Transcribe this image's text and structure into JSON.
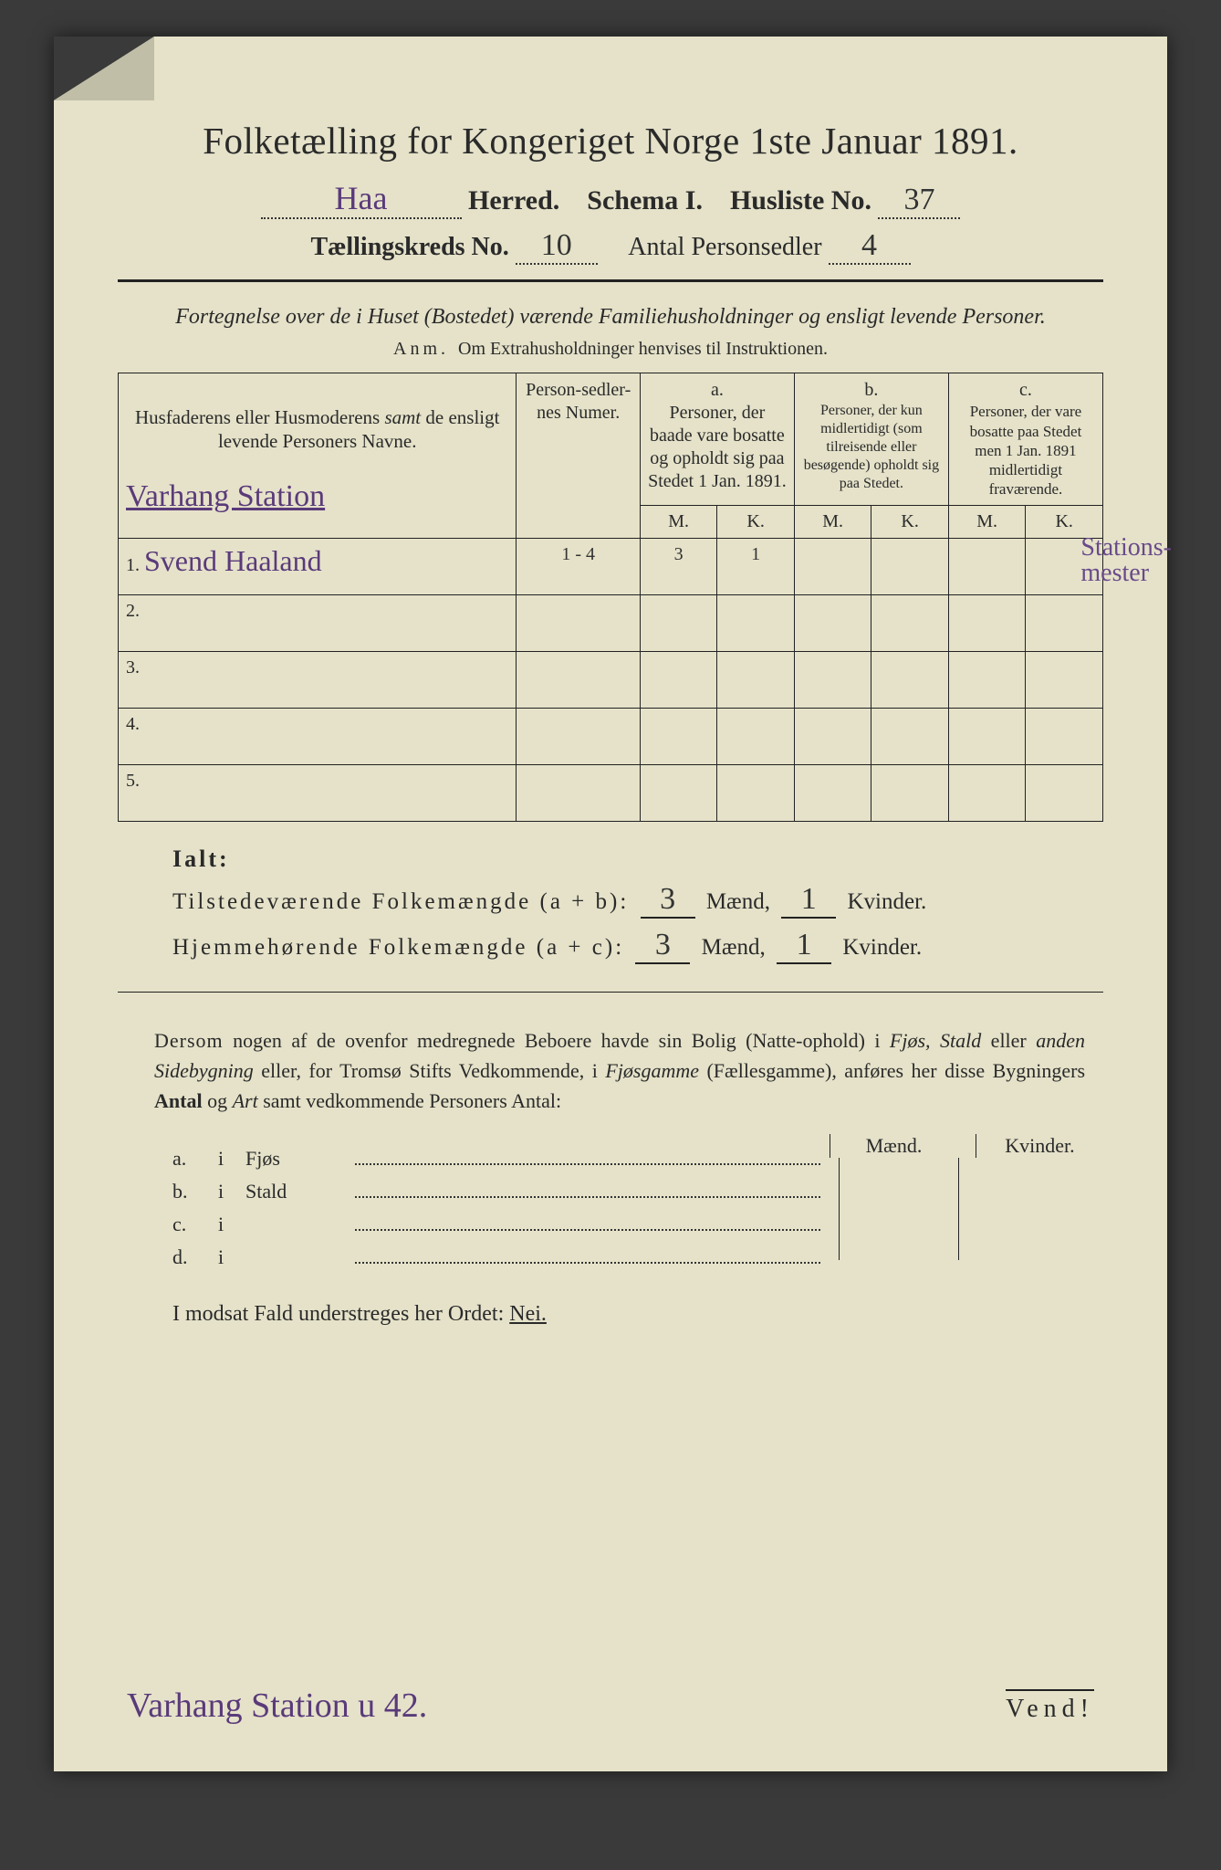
{
  "title": "Folketælling for Kongeriget Norge 1ste Januar 1891.",
  "header": {
    "herred_value": "Haa",
    "herred_label": "Herred.",
    "schema_label": "Schema I.",
    "husliste_label": "Husliste No.",
    "husliste_value": "37",
    "kreds_label": "Tællingskreds No.",
    "kreds_value": "10",
    "antal_label": "Antal Personsedler",
    "antal_value": "4"
  },
  "intro": {
    "line": "Fortegnelse over de i Huset (Bostedet) værende Familiehusholdninger og ensligt levende Personer.",
    "anm_label": "Anm.",
    "anm_text": "Om Extrahusholdninger henvises til Instruktionen."
  },
  "table": {
    "col_name": "Husfaderens eller Husmoderens samt de ensligt levende Personers Navne.",
    "col_num": "Person-sedler-nes Numer.",
    "col_a_tag": "a.",
    "col_a": "Personer, der baade vare bosatte og opholdt sig paa Stedet 1 Jan. 1891.",
    "col_b_tag": "b.",
    "col_b": "Personer, der kun midlertidigt (som tilreisende eller besøgende) opholdt sig paa Stedet.",
    "col_c_tag": "c.",
    "col_c": "Personer, der vare bosatte paa Stedet men 1 Jan. 1891 midlertidigt fraværende.",
    "mk_m": "M.",
    "mk_k": "K.",
    "location_hand": "Varhang Station",
    "rows": [
      {
        "idx": "1.",
        "name": "Svend Haaland",
        "num": "1 - 4",
        "a_m": "3",
        "a_k": "1",
        "b_m": "",
        "b_k": "",
        "c_m": "",
        "c_k": "",
        "note": "Stations-\nmester"
      },
      {
        "idx": "2.",
        "name": "",
        "num": "",
        "a_m": "",
        "a_k": "",
        "b_m": "",
        "b_k": "",
        "c_m": "",
        "c_k": "",
        "note": ""
      },
      {
        "idx": "3.",
        "name": "",
        "num": "",
        "a_m": "",
        "a_k": "",
        "b_m": "",
        "b_k": "",
        "c_m": "",
        "c_k": "",
        "note": ""
      },
      {
        "idx": "4.",
        "name": "",
        "num": "",
        "a_m": "",
        "a_k": "",
        "b_m": "",
        "b_k": "",
        "c_m": "",
        "c_k": "",
        "note": ""
      },
      {
        "idx": "5.",
        "name": "",
        "num": "",
        "a_m": "",
        "a_k": "",
        "b_m": "",
        "b_k": "",
        "c_m": "",
        "c_k": "",
        "note": ""
      }
    ]
  },
  "totals": {
    "ialt": "Ialt:",
    "line1_label": "Tilstedeværende Folkemængde (a + b):",
    "line2_label": "Hjemmehørende Folkemængde (a + c):",
    "maend": "Mænd,",
    "kvinder": "Kvinder.",
    "l1_m": "3",
    "l1_k": "1",
    "l2_m": "3",
    "l2_k": "1"
  },
  "para": "Dersom nogen af de ovenfor medregnede Beboere havde sin Bolig (Natte-ophold) i Fjøs, Stald eller anden Sidebygning eller, for Tromsø Stifts Vedkommende, i Fjøsgamme (Fællesgamme), anføres her disse Bygningers Antal og Art samt vedkommende Personers Antal:",
  "subtable": {
    "maend": "Mænd.",
    "kvinder": "Kvinder.",
    "rows": [
      {
        "idx": "a.",
        "i": "i",
        "label": "Fjøs"
      },
      {
        "idx": "b.",
        "i": "i",
        "label": "Stald"
      },
      {
        "idx": "c.",
        "i": "i",
        "label": ""
      },
      {
        "idx": "d.",
        "i": "i",
        "label": ""
      }
    ]
  },
  "nei_line": "I modsat Fald understreges her Ordet: ",
  "nei_word": "Nei.",
  "footer": {
    "note": "Varhang Station  u 42.",
    "vend": "Vend!"
  },
  "colors": {
    "paper": "#e5e2c9",
    "ink": "#2a2a2a",
    "handwriting": "#5a3a7a"
  }
}
